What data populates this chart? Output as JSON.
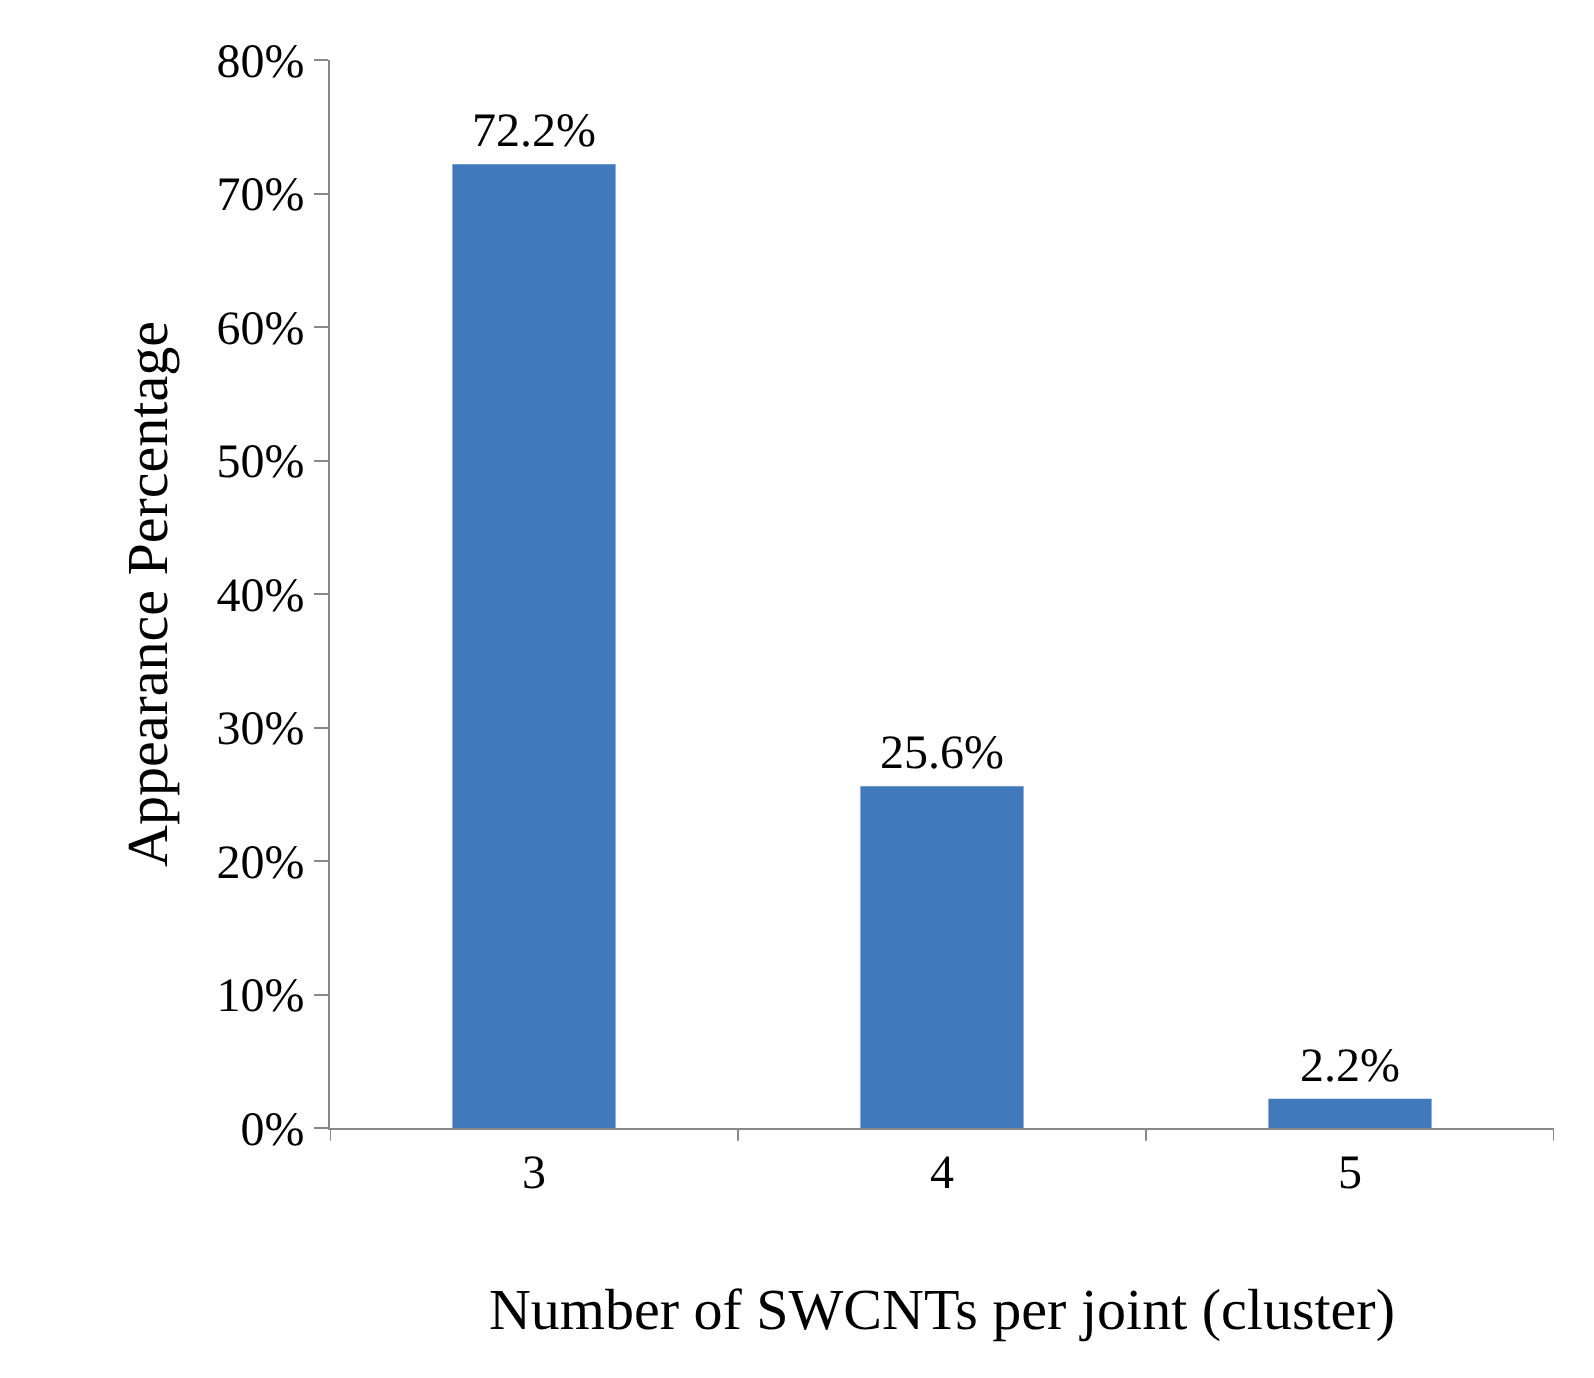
{
  "chart_data": {
    "type": "bar",
    "xlabel": "Number of SWCNTs per joint (cluster)",
    "ylabel": "Appearance Percentage",
    "categories": [
      "3",
      "4",
      "5"
    ],
    "values": [
      72.2,
      25.6,
      2.2
    ],
    "value_labels": [
      "72.2%",
      "25.6%",
      "2.2%"
    ],
    "color": "#4279bd",
    "ylim": [
      0,
      80
    ],
    "yticks": [
      {
        "value": 0,
        "label": "0%"
      },
      {
        "value": 10,
        "label": "10%"
      },
      {
        "value": 20,
        "label": "20%"
      },
      {
        "value": 30,
        "label": "30%"
      },
      {
        "value": 40,
        "label": "40%"
      },
      {
        "value": 50,
        "label": "50%"
      },
      {
        "value": 60,
        "label": "60%"
      },
      {
        "value": 70,
        "label": "70%"
      },
      {
        "value": 80,
        "label": "80%"
      }
    ]
  }
}
